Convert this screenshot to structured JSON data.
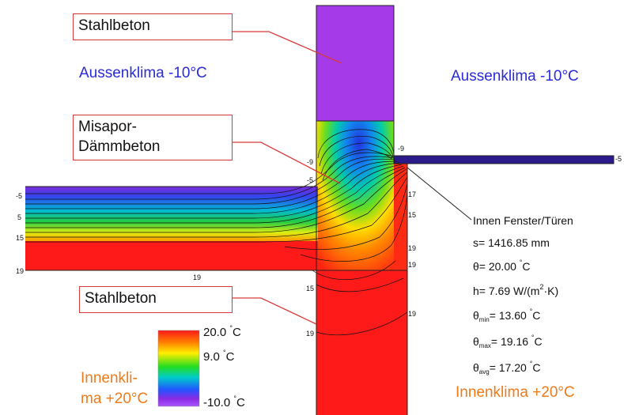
{
  "callouts": {
    "top": "Stahlbeton",
    "middle_line1": "Misapor-",
    "middle_line2": "Dämmbeton",
    "bottom": "Stahlbeton"
  },
  "climate": {
    "outside_left": "Aussenklima -10°C",
    "outside_right": "Aussenklima -10°C",
    "inside_left_line1": "Innenkli-",
    "inside_left_line2": "ma +20°C",
    "inside_right": "Innenklima +20°C",
    "outside_color": "#2a2ad6",
    "inside_color": "#f07a18"
  },
  "info": {
    "title": "Innen Fenster/Türen",
    "s": "s= 1416.85 mm",
    "theta_sym": "θ",
    "theta_rest": "= 20.00",
    "theta_unit": "C",
    "h": "h= 7.69 W/(m",
    "h_sup": "2",
    "h_tail": "·K)",
    "theta_min_sub": "min",
    "theta_min_val": "= 13.60",
    "theta_max_sub": "max",
    "theta_max_val": "= 19.16",
    "theta_avg_sub": "avg",
    "theta_avg_val": "= 17.20",
    "degree": "°",
    "unit_c": "C"
  },
  "legend": {
    "max_val": "20.0",
    "mid_val": "9.0",
    "min_val": "-10.0",
    "deg": "°",
    "unit": "C",
    "colors": [
      "#ff1a1a",
      "#ff7a00",
      "#ffee00",
      "#22dd22",
      "#00cccc",
      "#2255ff",
      "#8a2be2",
      "#aa55ff"
    ]
  },
  "isotherm_labels": {
    "l_m5": "-5",
    "l_5": "5",
    "l_15": "15",
    "l_19_left": "19",
    "l_19_bottom": "19",
    "l_m9_a": "-9",
    "l_m5_b": "-5",
    "l_m9_c": "-9",
    "l_m5_right": "-5",
    "l_17": "17",
    "l_15_r": "15",
    "l_19_r1": "19",
    "l_19_r2": "19",
    "l_15_c": "15",
    "l_19_c": "19",
    "l_19_far": "19"
  }
}
